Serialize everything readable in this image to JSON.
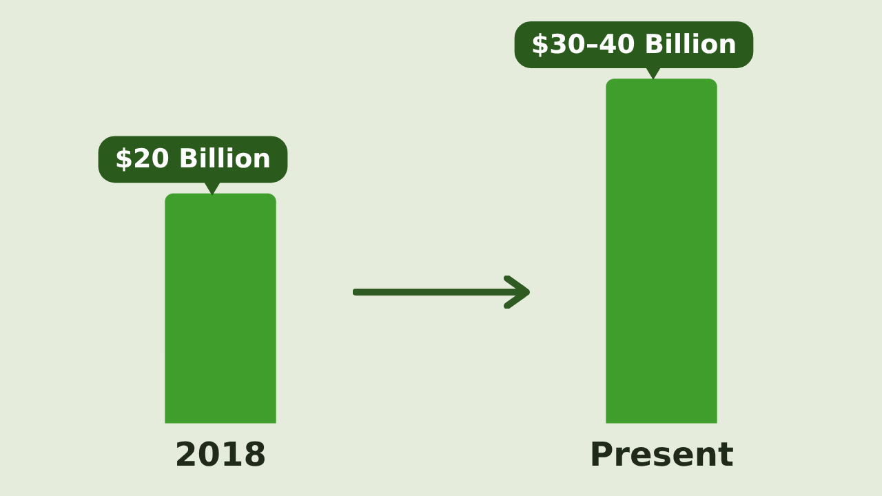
{
  "chart_data": {
    "type": "bar",
    "categories": [
      "2018",
      "Present"
    ],
    "values": [
      20,
      30
    ],
    "value_labels": [
      "$20 Billion",
      "$30–40 Billion"
    ],
    "color": "#3f9e2c",
    "grid": false,
    "legend": false
  }
}
